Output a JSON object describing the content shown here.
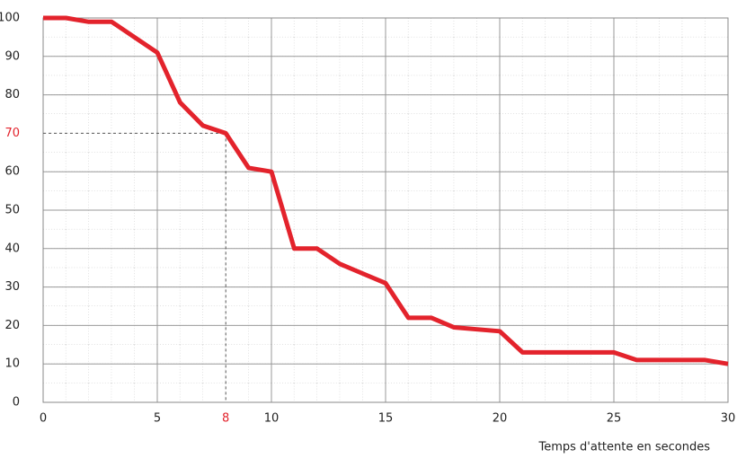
{
  "chart_data": {
    "type": "line",
    "x_label": "Temps d'attente en secondes",
    "x": [
      0,
      1,
      2,
      3,
      4,
      5,
      6,
      7,
      8,
      9,
      10,
      11,
      12,
      13,
      14,
      15,
      16,
      17,
      18,
      19,
      20,
      21,
      22,
      23,
      24,
      25,
      26,
      27,
      28,
      29,
      30
    ],
    "series": [
      {
        "color": "#e3232c",
        "values": [
          100,
          100,
          99,
          99,
          95,
          91,
          78,
          72,
          70,
          61,
          60,
          40,
          40,
          36,
          33.5,
          31,
          22,
          22,
          19.5,
          19,
          18.5,
          13,
          13,
          13,
          13,
          13,
          11,
          11,
          11,
          11,
          10
        ]
      }
    ],
    "xlim": [
      0,
      30
    ],
    "ylim": [
      0,
      100
    ],
    "xticks": [
      0,
      5,
      8,
      10,
      15,
      20,
      25,
      30
    ],
    "yticks": [
      0,
      10,
      20,
      30,
      40,
      50,
      60,
      70,
      80,
      90,
      100
    ],
    "grid": true,
    "highlight": {
      "x": 8,
      "y": 70,
      "color": "#e3232c"
    }
  }
}
